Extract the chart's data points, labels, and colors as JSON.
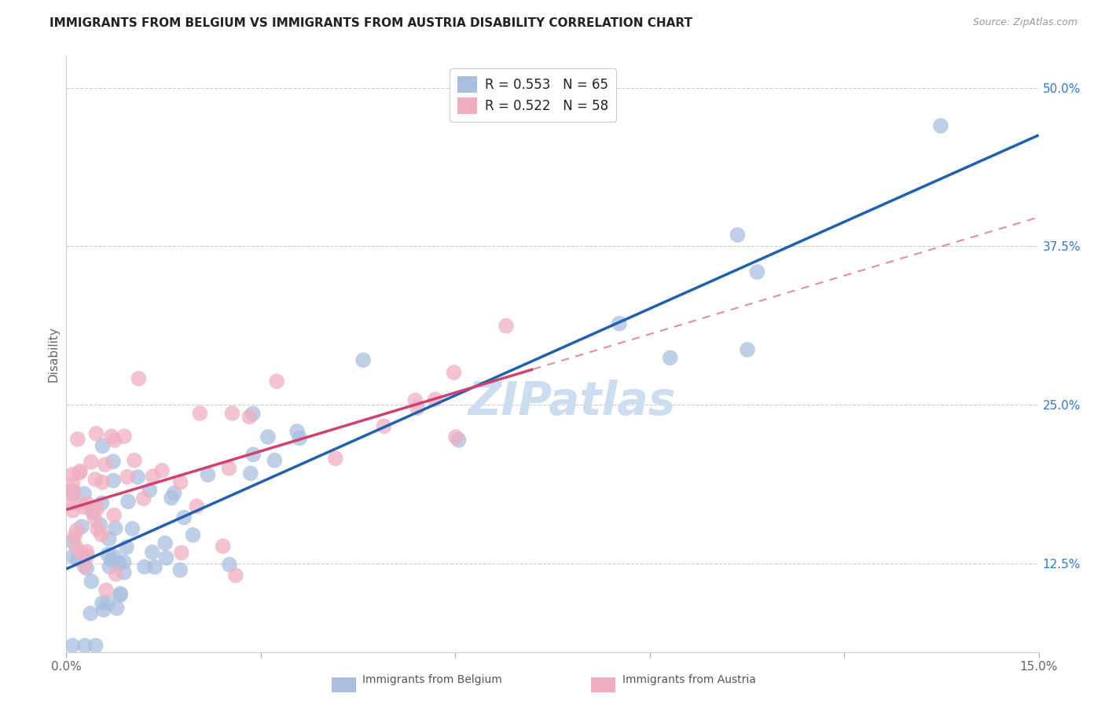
{
  "title": "IMMIGRANTS FROM BELGIUM VS IMMIGRANTS FROM AUSTRIA DISABILITY CORRELATION CHART",
  "source": "Source: ZipAtlas.com",
  "ylabel": "Disability",
  "x_min": 0.0,
  "x_max": 0.15,
  "y_min": 0.055,
  "y_max": 0.525,
  "x_ticks": [
    0.0,
    0.03,
    0.06,
    0.09,
    0.12,
    0.15
  ],
  "x_tick_labels": [
    "0.0%",
    "",
    "",
    "",
    "",
    "15.0%"
  ],
  "y_tick_labels": [
    "12.5%",
    "25.0%",
    "37.5%",
    "50.0%"
  ],
  "y_ticks": [
    0.125,
    0.25,
    0.375,
    0.5
  ],
  "legend1_label": "R = 0.553   N = 65",
  "legend2_label": "R = 0.522   N = 58",
  "legend_color1": "#aabfdf",
  "legend_color2": "#f0afc0",
  "scatter_color1": "#aabfdf",
  "scatter_color2": "#f0afc0",
  "line_color1": "#2060b0",
  "line_color2": "#d04070",
  "watermark": "ZIPatlas",
  "watermark_color": "#ccddf0",
  "r1": 0.553,
  "n1": 65,
  "r2": 0.522,
  "n2": 58,
  "title_fontsize": 11,
  "source_fontsize": 9,
  "legend_fontsize": 12,
  "tick_fontsize": 11
}
